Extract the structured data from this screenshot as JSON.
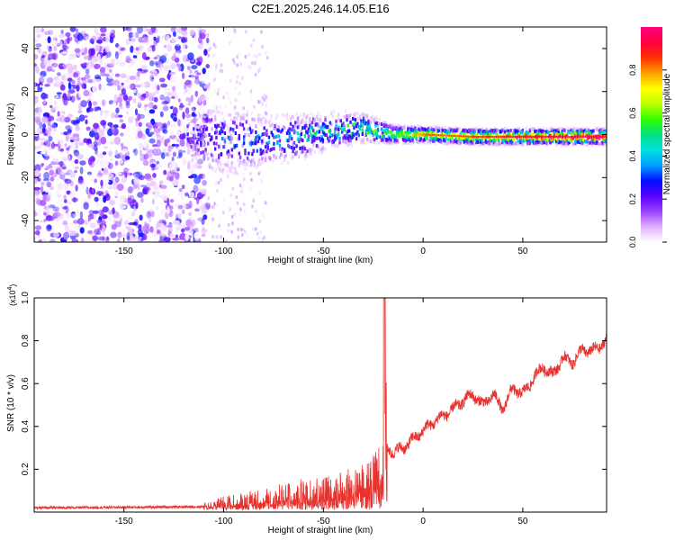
{
  "title": "C2E1.2025.246.14.05.E16",
  "chart_data": [
    {
      "type": "heatmap",
      "name": "spectrogram",
      "xlabel": "Height of straight line (km)",
      "ylabel": "Frequency (Hz)",
      "xlim": [
        -195,
        92
      ],
      "ylim": [
        -50,
        50
      ],
      "x_ticks": [
        -150,
        -100,
        -50,
        0,
        50
      ],
      "y_ticks": [
        -40,
        -20,
        0,
        20,
        40
      ],
      "colorbar": {
        "label": "Normalized spectral amplitude",
        "range": [
          0,
          1
        ],
        "ticks": [
          0.0,
          0.2,
          0.4,
          0.6,
          0.8
        ],
        "colors": [
          "#ffffff",
          "#e0b0ff",
          "#9a40ff",
          "#5a00ff",
          "#0010ff",
          "#00a0ff",
          "#00e0e0",
          "#00e080",
          "#30ff00",
          "#c0ff00",
          "#ffff00",
          "#ffa000",
          "#ff3000",
          "#ff0040",
          "#ff0080"
        ]
      },
      "noise_region_x": [
        -195,
        -108
      ],
      "band": [
        {
          "x": -118,
          "center": 0,
          "halfwidth": 12,
          "amp": 0.2
        },
        {
          "x": -100,
          "center": -3,
          "halfwidth": 12,
          "amp": 0.3
        },
        {
          "x": -80,
          "center": -3,
          "halfwidth": 9,
          "amp": 0.35
        },
        {
          "x": -60,
          "center": -1,
          "halfwidth": 8,
          "amp": 0.4
        },
        {
          "x": -45,
          "center": 2,
          "halfwidth": 6,
          "amp": 0.5
        },
        {
          "x": -30,
          "center": 3,
          "halfwidth": 5,
          "amp": 0.55
        },
        {
          "x": -15,
          "center": 0,
          "halfwidth": 3,
          "amp": 0.6
        },
        {
          "x": 0,
          "center": 0,
          "halfwidth": 2.5,
          "amp": 0.75
        },
        {
          "x": 25,
          "center": -1,
          "halfwidth": 2.5,
          "amp": 0.8
        },
        {
          "x": 50,
          "center": -1,
          "halfwidth": 2.5,
          "amp": 0.88
        },
        {
          "x": 70,
          "center": -1,
          "halfwidth": 2.5,
          "amp": 0.94
        },
        {
          "x": 92,
          "center": -1,
          "halfwidth": 2.5,
          "amp": 1.0
        }
      ]
    },
    {
      "type": "line",
      "name": "snr",
      "xlabel": "Height of straight line (km)",
      "ylabel": "SNR (10 * v/v)",
      "scale_label": "(x10",
      "scale_exp": "4",
      "scale_close": ")",
      "xlim": [
        -195,
        92
      ],
      "ylim": [
        0,
        1.0
      ],
      "x_ticks": [
        -150,
        -100,
        -50,
        0,
        50
      ],
      "y_ticks": [
        0.2,
        0.4,
        0.6,
        0.8,
        1.0
      ],
      "color": "#e8322e",
      "series": [
        {
          "name": "SNR",
          "x": [
            -195,
            -110,
            -100,
            -85,
            -70,
            -55,
            -40,
            -30,
            -25,
            -20,
            -19,
            -18,
            -15,
            -10,
            -5,
            0,
            5,
            10,
            15,
            20,
            25,
            30,
            35,
            40,
            45,
            50,
            55,
            60,
            65,
            70,
            75,
            80,
            85,
            92
          ],
          "y": [
            0.02,
            0.025,
            0.05,
            0.07,
            0.1,
            0.12,
            0.14,
            0.17,
            0.2,
            0.25,
            1.0,
            0.3,
            0.28,
            0.3,
            0.34,
            0.38,
            0.42,
            0.45,
            0.48,
            0.52,
            0.55,
            0.5,
            0.55,
            0.48,
            0.58,
            0.55,
            0.62,
            0.68,
            0.64,
            0.72,
            0.7,
            0.76,
            0.75,
            0.8
          ]
        }
      ]
    }
  ]
}
